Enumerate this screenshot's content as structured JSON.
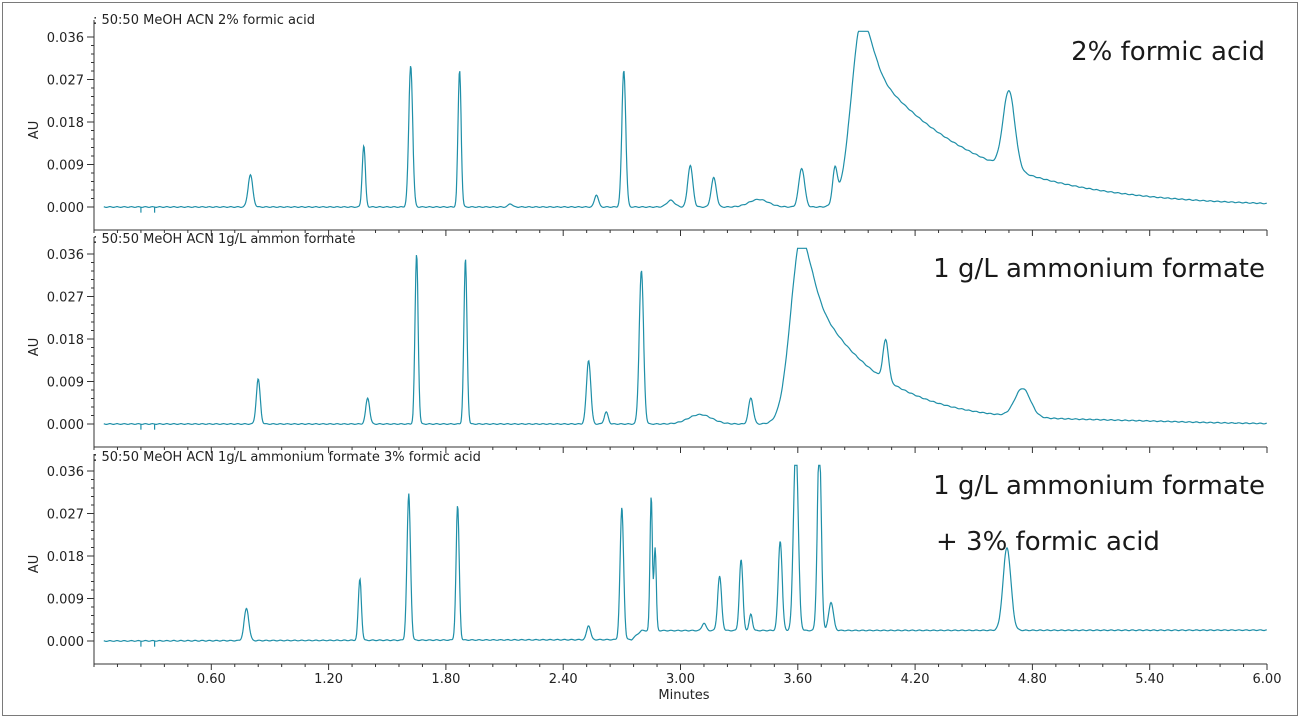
{
  "colors": {
    "trace": "#1f8fa8",
    "axis": "#333333",
    "text": "#222222"
  },
  "chart_data": [
    {
      "type": "line",
      "panel_title": ": 50:50 MeOH ACN 2% formic acid",
      "annotation": [
        "2% formic acid"
      ],
      "ylabel": "AU",
      "xlabel": "",
      "yticks": [
        "0.036",
        "0.027",
        "0.018",
        "0.009",
        "0.000"
      ],
      "ylim": [
        -0.002,
        0.037
      ],
      "xlim": [
        0.0,
        6.0
      ],
      "baseline": [
        [
          0.05,
          0.0
        ],
        [
          6.0,
          0.0
        ]
      ],
      "peaks": [
        [
          0.8,
          0.0068,
          0.012
        ],
        [
          1.38,
          0.013,
          0.008
        ],
        [
          1.62,
          0.03,
          0.01
        ],
        [
          1.87,
          0.029,
          0.008
        ],
        [
          2.13,
          0.0007,
          0.01
        ],
        [
          2.57,
          0.0026,
          0.01
        ],
        [
          2.71,
          0.029,
          0.01
        ],
        [
          2.95,
          0.0014,
          0.02
        ],
        [
          3.05,
          0.0088,
          0.013
        ],
        [
          3.17,
          0.0062,
          0.013
        ],
        [
          3.4,
          0.0016,
          0.05
        ],
        [
          3.62,
          0.0082,
          0.015
        ],
        [
          3.79,
          0.007,
          0.012
        ],
        [
          3.93,
          0.04,
          0.055,
          0.55
        ],
        [
          4.68,
          0.0165,
          0.03
        ]
      ]
    },
    {
      "type": "line",
      "panel_title": ": 50:50 MeOH ACN 1g/L ammon formate",
      "annotation": [
        "1 g/L ammonium formate"
      ],
      "ylabel": "AU",
      "xlabel": "",
      "yticks": [
        "0.036",
        "0.027",
        "0.018",
        "0.009",
        "0.000"
      ],
      "ylim": [
        -0.002,
        0.037
      ],
      "xlim": [
        0.0,
        6.0
      ],
      "baseline": [
        [
          0.05,
          0.0
        ],
        [
          6.0,
          0.0
        ]
      ],
      "peaks": [
        [
          0.84,
          0.0095,
          0.01
        ],
        [
          1.4,
          0.0055,
          0.01
        ],
        [
          1.65,
          0.036,
          0.008
        ],
        [
          1.9,
          0.035,
          0.008
        ],
        [
          2.53,
          0.0135,
          0.011
        ],
        [
          2.62,
          0.0025,
          0.01
        ],
        [
          2.8,
          0.0325,
          0.011
        ],
        [
          3.1,
          0.002,
          0.06
        ],
        [
          3.36,
          0.0055,
          0.012
        ],
        [
          3.62,
          0.04,
          0.055,
          0.35
        ],
        [
          4.05,
          0.0085,
          0.014
        ],
        [
          4.75,
          0.006,
          0.04
        ],
        [
          5.2,
          0.0005,
          0.4
        ]
      ]
    },
    {
      "type": "line",
      "panel_title": ": 50:50 MeOH ACN 1g/L ammonium formate 3% formic acid",
      "annotation": [
        "1 g/L ammonium formate",
        "+ 3% formic acid"
      ],
      "ylabel": "AU",
      "xlabel": "Minutes",
      "yticks": [
        "0.036",
        "0.027",
        "0.018",
        "0.009",
        "0.000"
      ],
      "xticks": [
        "0.60",
        "1.20",
        "1.80",
        "2.40",
        "3.00",
        "3.60",
        "4.20",
        "4.80",
        "5.40",
        "6.00"
      ],
      "xtick_values": [
        0.6,
        1.2,
        1.8,
        2.4,
        3.0,
        3.6,
        4.2,
        4.8,
        5.4,
        6.0
      ],
      "ylim": [
        -0.002,
        0.037
      ],
      "xlim": [
        0.0,
        6.0
      ],
      "baseline": [
        [
          0.05,
          0.0
        ],
        [
          2.75,
          0.0003
        ],
        [
          2.8,
          0.0022
        ],
        [
          6.0,
          0.0023
        ]
      ],
      "peaks": [
        [
          0.78,
          0.0068,
          0.012
        ],
        [
          1.36,
          0.013,
          0.008
        ],
        [
          1.61,
          0.031,
          0.009
        ],
        [
          1.86,
          0.0285,
          0.008
        ],
        [
          2.53,
          0.003,
          0.01
        ],
        [
          2.7,
          0.028,
          0.009
        ],
        [
          2.85,
          0.0285,
          0.006
        ],
        [
          2.87,
          0.0175,
          0.006
        ],
        [
          3.12,
          0.0016,
          0.01
        ],
        [
          3.2,
          0.0115,
          0.01
        ],
        [
          3.31,
          0.015,
          0.009
        ],
        [
          3.36,
          0.0035,
          0.008
        ],
        [
          3.51,
          0.019,
          0.01
        ],
        [
          3.59,
          0.04,
          0.012
        ],
        [
          3.71,
          0.04,
          0.01
        ],
        [
          3.77,
          0.006,
          0.012
        ],
        [
          4.67,
          0.0175,
          0.02
        ]
      ]
    }
  ]
}
